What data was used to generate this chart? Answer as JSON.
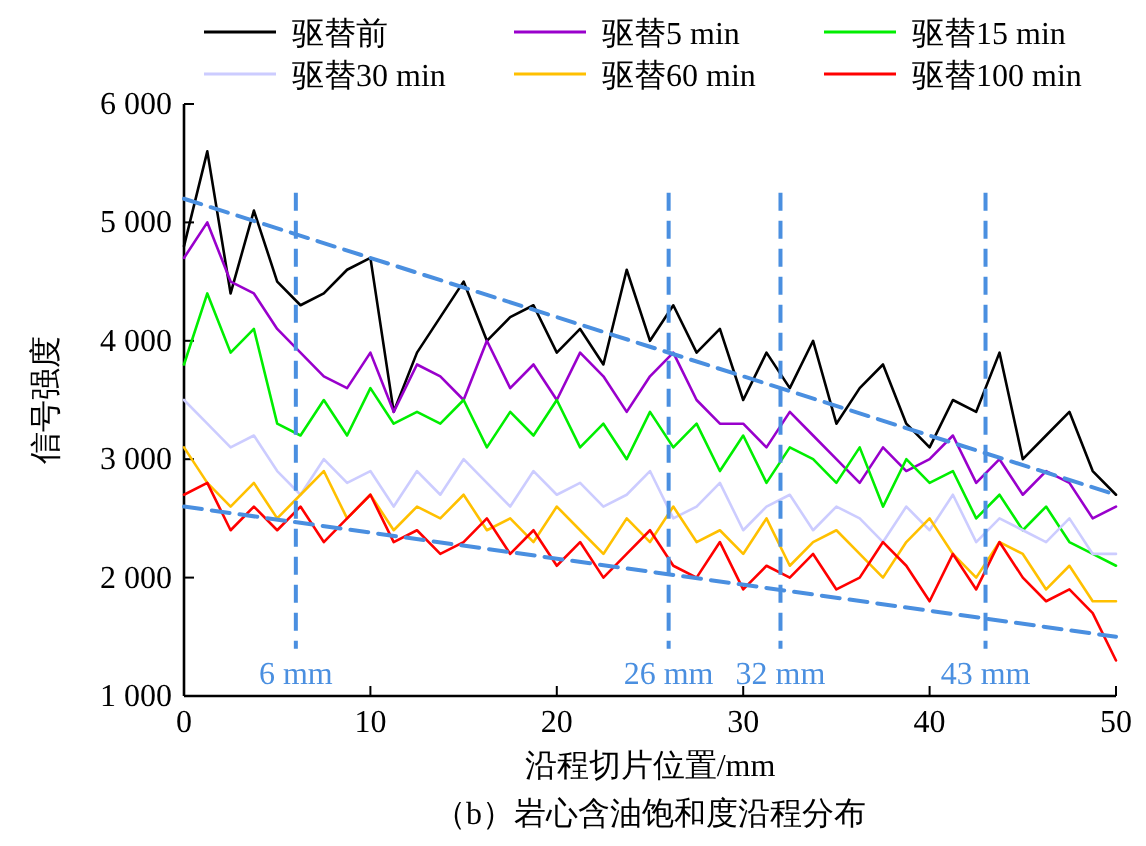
{
  "chart_data": {
    "type": "line",
    "title": "（b）岩心含油饱和度沿程分布",
    "xlabel": "沿程切片位置/mm",
    "ylabel": "信号强度",
    "x": [
      0,
      1.25,
      2.5,
      3.75,
      5,
      6.25,
      7.5,
      8.75,
      10,
      11.25,
      12.5,
      13.75,
      15,
      16.25,
      17.5,
      18.75,
      20,
      21.25,
      22.5,
      23.75,
      25,
      26.25,
      27.5,
      28.75,
      30,
      31.25,
      32.5,
      33.75,
      35,
      36.25,
      37.5,
      38.75,
      40,
      41.25,
      42.5,
      43.75,
      45,
      46.25,
      47.5,
      48.75,
      50
    ],
    "series": [
      {
        "name": "驱替前",
        "color": "#000000",
        "values": [
          4800,
          5600,
          4400,
          5100,
          4500,
          4300,
          4400,
          4600,
          4700,
          3400,
          3900,
          4200,
          4500,
          4000,
          4200,
          4300,
          3900,
          4100,
          3800,
          4600,
          4000,
          4300,
          3900,
          4100,
          3500,
          3900,
          3600,
          4000,
          3300,
          3600,
          3800,
          3300,
          3100,
          3500,
          3400,
          3900,
          3000,
          3200,
          3400,
          2900,
          2700
        ]
      },
      {
        "name": "驱替5 min",
        "color": "#9900cc",
        "values": [
          4700,
          5000,
          4500,
          4400,
          4100,
          3900,
          3700,
          3600,
          3900,
          3400,
          3800,
          3700,
          3500,
          4000,
          3600,
          3800,
          3500,
          3900,
          3700,
          3400,
          3700,
          3900,
          3500,
          3300,
          3300,
          3100,
          3400,
          3200,
          3000,
          2800,
          3100,
          2900,
          3000,
          3200,
          2800,
          3000,
          2700,
          2900,
          2800,
          2500,
          2600
        ]
      },
      {
        "name": "驱替15 min",
        "color": "#00ee00",
        "values": [
          3800,
          4400,
          3900,
          4100,
          3300,
          3200,
          3500,
          3200,
          3600,
          3300,
          3400,
          3300,
          3500,
          3100,
          3400,
          3200,
          3500,
          3100,
          3300,
          3000,
          3400,
          3100,
          3300,
          2900,
          3200,
          2800,
          3100,
          3000,
          2800,
          3100,
          2600,
          3000,
          2800,
          2900,
          2500,
          2700,
          2400,
          2600,
          2300,
          2200,
          2100
        ]
      },
      {
        "name": "驱替30 min",
        "color": "#ccccff",
        "values": [
          3500,
          3300,
          3100,
          3200,
          2900,
          2700,
          3000,
          2800,
          2900,
          2600,
          2900,
          2700,
          3000,
          2800,
          2600,
          2900,
          2700,
          2800,
          2600,
          2700,
          2900,
          2500,
          2600,
          2800,
          2400,
          2600,
          2700,
          2400,
          2600,
          2500,
          2300,
          2600,
          2400,
          2700,
          2300,
          2500,
          2400,
          2300,
          2500,
          2200,
          2200
        ]
      },
      {
        "name": "驱替60 min",
        "color": "#ffc000",
        "values": [
          3100,
          2800,
          2600,
          2800,
          2500,
          2700,
          2900,
          2500,
          2700,
          2400,
          2600,
          2500,
          2700,
          2400,
          2500,
          2300,
          2600,
          2400,
          2200,
          2500,
          2300,
          2600,
          2300,
          2400,
          2200,
          2500,
          2100,
          2300,
          2400,
          2200,
          2000,
          2300,
          2500,
          2200,
          2000,
          2300,
          2200,
          1900,
          2100,
          1800,
          1800
        ]
      },
      {
        "name": "驱替100 min",
        "color": "#ff0000",
        "values": [
          2700,
          2800,
          2400,
          2600,
          2400,
          2600,
          2300,
          2500,
          2700,
          2300,
          2400,
          2200,
          2300,
          2500,
          2200,
          2400,
          2100,
          2300,
          2000,
          2200,
          2400,
          2100,
          2000,
          2300,
          1900,
          2100,
          2000,
          2200,
          1900,
          2000,
          2300,
          2100,
          1800,
          2200,
          1900,
          2300,
          2000,
          1800,
          1900,
          1700,
          1300
        ]
      },
      {
        "x": [
          0,
          25,
          50
        ],
        "color": "#4a8fe0",
        "line_style": "dashed",
        "values": [
          5200,
          3950,
          2700
        ]
      },
      {
        "x": [
          0,
          25,
          50
        ],
        "color": "#4a8fe0",
        "line_style": "dashed",
        "values": [
          2600,
          2050,
          1500
        ]
      }
    ],
    "ref_lines": [
      {
        "axis": "x",
        "value": 6,
        "label": "6 mm",
        "color": "#4a8fe0",
        "line_style": "dashed"
      },
      {
        "axis": "x",
        "value": 26,
        "label": "26 mm",
        "color": "#4a8fe0",
        "line_style": "dashed"
      },
      {
        "axis": "x",
        "value": 32,
        "label": "32 mm",
        "color": "#4a8fe0",
        "line_style": "dashed"
      },
      {
        "axis": "x",
        "value": 43,
        "label": "43 mm",
        "color": "#4a8fe0",
        "line_style": "dashed"
      }
    ],
    "xlim": [
      0,
      50
    ],
    "xticks": [
      0,
      10,
      20,
      30,
      40,
      50
    ],
    "ylim": [
      1000,
      6000
    ],
    "yticks": [
      {
        "value": 1000,
        "label": "1 000"
      },
      {
        "value": 2000,
        "label": "2 000"
      },
      {
        "value": 3000,
        "label": "3 000"
      },
      {
        "value": 4000,
        "label": "4 000"
      },
      {
        "value": 5000,
        "label": "5 000"
      },
      {
        "value": 6000,
        "label": "6 000"
      }
    ],
    "legend": "top",
    "grid": false,
    "marker": "none",
    "line_style": "solid"
  }
}
